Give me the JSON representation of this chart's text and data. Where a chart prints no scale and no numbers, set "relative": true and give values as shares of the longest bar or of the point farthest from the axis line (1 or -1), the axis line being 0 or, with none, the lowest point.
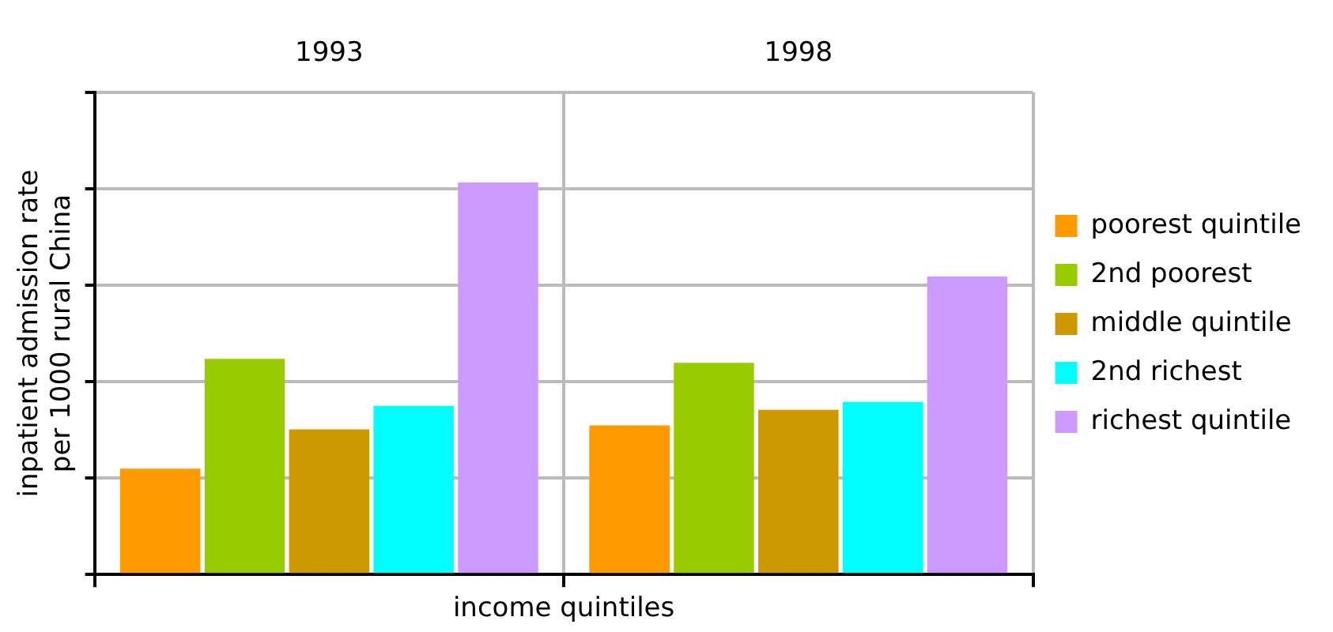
{
  "chart_data": {
    "type": "bar",
    "xlabel": "income quintiles",
    "ylabel": "inpatient admission rate per 1000 rural China",
    "categories": [
      "1993",
      "1998"
    ],
    "relative": true,
    "grid": true,
    "legend": "right",
    "series": [
      {
        "name": "poorest quintile",
        "color": "#ff9900",
        "values": [
          0.27,
          0.38
        ]
      },
      {
        "name": "2nd poorest",
        "color": "#99cc00",
        "values": [
          0.55,
          0.54
        ]
      },
      {
        "name": "middle quintile",
        "color": "#cc9900",
        "values": [
          0.37,
          0.42
        ]
      },
      {
        "name": "2nd richest",
        "color": "#00ffff",
        "values": [
          0.43,
          0.44
        ]
      },
      {
        "name": "richest quintile",
        "color": "#cc99ff",
        "values": [
          1,
          0.76
        ]
      }
    ]
  }
}
